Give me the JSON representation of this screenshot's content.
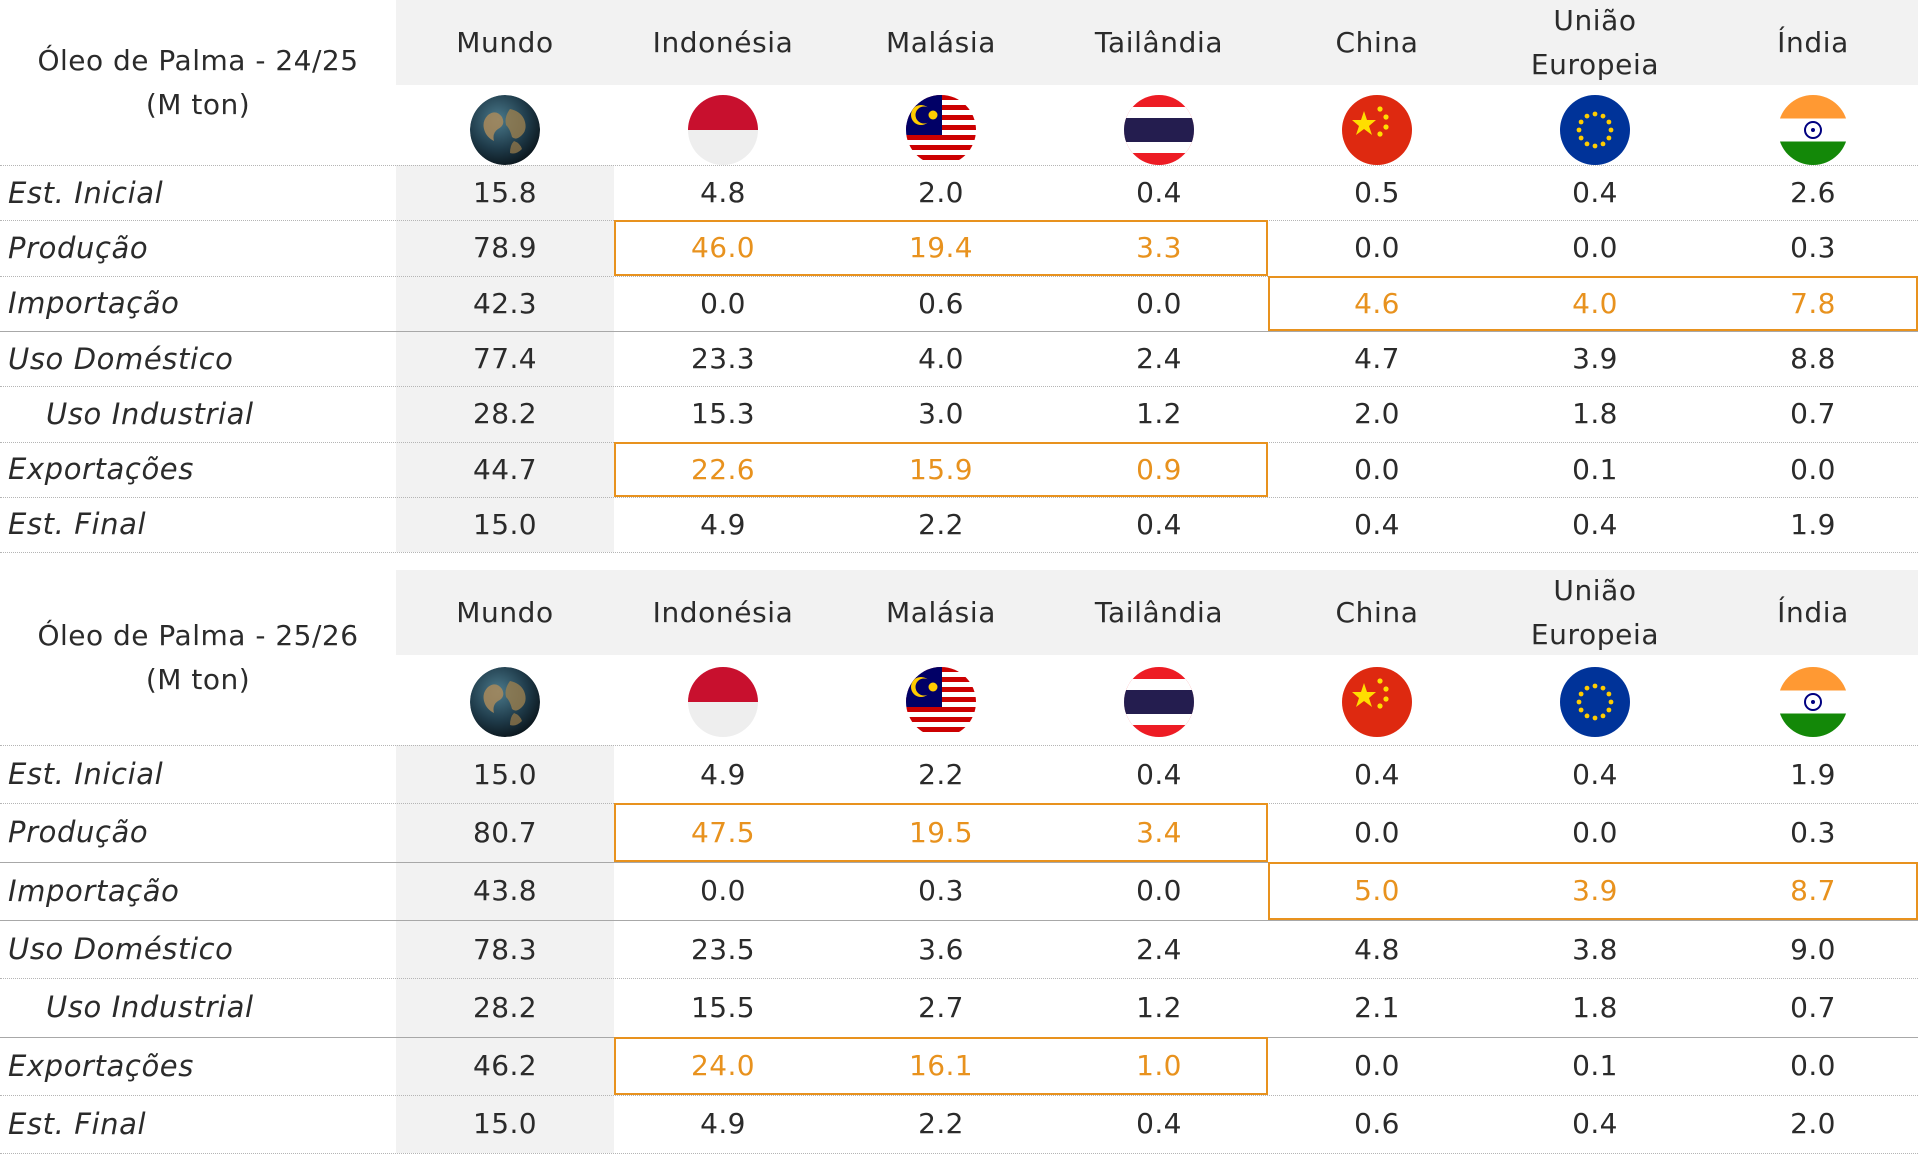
{
  "columns": [
    "Mundo",
    "Indonésia",
    "Malásia",
    "Tailândia",
    "China",
    "União Europeia",
    "Índia"
  ],
  "flag_icons": [
    "globe-icon",
    "indonesia-flag-icon",
    "malaysia-flag-icon",
    "thailand-flag-icon",
    "china-flag-icon",
    "eu-flag-icon",
    "india-flag-icon"
  ],
  "colors": {
    "highlight": "#e8921e",
    "text": "#2b2b2b",
    "shade": "#f2f2f2"
  },
  "chart_data": [
    {
      "type": "table",
      "title": "Óleo de Palma - 24/25\n(M ton)",
      "columns": [
        "Mundo",
        "Indonésia",
        "Malásia",
        "Tailândia",
        "China",
        "União Europeia",
        "Índia"
      ],
      "rows": [
        {
          "label": "Est. Inicial",
          "indent": false,
          "values": [
            "15.8",
            "4.8",
            "2.0",
            "0.4",
            "0.5",
            "0.4",
            "2.6"
          ]
        },
        {
          "label": "Produção",
          "indent": false,
          "values": [
            "78.9",
            "46.0",
            "19.4",
            "3.3",
            "0.0",
            "0.0",
            "0.3"
          ],
          "highlight_columns": [
            "Indonésia",
            "Malásia",
            "Tailândia"
          ]
        },
        {
          "label": "Importação",
          "indent": false,
          "values": [
            "42.3",
            "0.0",
            "0.6",
            "0.0",
            "4.6",
            "4.0",
            "7.8"
          ],
          "highlight_columns": [
            "China",
            "União Europeia",
            "Índia"
          ]
        },
        {
          "label": "Uso Doméstico",
          "indent": false,
          "values": [
            "77.4",
            "23.3",
            "4.0",
            "2.4",
            "4.7",
            "3.9",
            "8.8"
          ]
        },
        {
          "label": "Uso Industrial",
          "indent": true,
          "values": [
            "28.2",
            "15.3",
            "3.0",
            "1.2",
            "2.0",
            "1.8",
            "0.7"
          ]
        },
        {
          "label": "Exportações",
          "indent": false,
          "values": [
            "44.7",
            "22.6",
            "15.9",
            "0.9",
            "0.0",
            "0.1",
            "0.0"
          ],
          "highlight_columns": [
            "Indonésia",
            "Malásia",
            "Tailândia"
          ]
        },
        {
          "label": "Est. Final",
          "indent": false,
          "values": [
            "15.0",
            "4.9",
            "2.2",
            "0.4",
            "0.4",
            "0.4",
            "1.9"
          ]
        }
      ]
    },
    {
      "type": "table",
      "title": "Óleo de Palma - 25/26\n(M ton)",
      "columns": [
        "Mundo",
        "Indonésia",
        "Malásia",
        "Tailândia",
        "China",
        "União Europeia",
        "Índia"
      ],
      "rows": [
        {
          "label": "Est. Inicial",
          "indent": false,
          "values": [
            "15.0",
            "4.9",
            "2.2",
            "0.4",
            "0.4",
            "0.4",
            "1.9"
          ]
        },
        {
          "label": "Produção",
          "indent": false,
          "values": [
            "80.7",
            "47.5",
            "19.5",
            "3.4",
            "0.0",
            "0.0",
            "0.3"
          ],
          "highlight_columns": [
            "Indonésia",
            "Malásia",
            "Tailândia"
          ]
        },
        {
          "label": "Importação",
          "indent": false,
          "values": [
            "43.8",
            "0.0",
            "0.3",
            "0.0",
            "5.0",
            "3.9",
            "8.7"
          ],
          "highlight_columns": [
            "China",
            "União Europeia",
            "Índia"
          ]
        },
        {
          "label": "Uso Doméstico",
          "indent": false,
          "values": [
            "78.3",
            "23.5",
            "3.6",
            "2.4",
            "4.8",
            "3.8",
            "9.0"
          ]
        },
        {
          "label": "Uso Industrial",
          "indent": true,
          "values": [
            "28.2",
            "15.5",
            "2.7",
            "1.2",
            "2.1",
            "1.8",
            "0.7"
          ]
        },
        {
          "label": "Exportações",
          "indent": false,
          "values": [
            "46.2",
            "24.0",
            "16.1",
            "1.0",
            "0.0",
            "0.1",
            "0.0"
          ],
          "highlight_columns": [
            "Indonésia",
            "Malásia",
            "Tailândia"
          ]
        },
        {
          "label": "Est. Final",
          "indent": false,
          "values": [
            "15.0",
            "4.9",
            "2.2",
            "0.4",
            "0.6",
            "0.4",
            "2.0"
          ]
        }
      ]
    }
  ]
}
